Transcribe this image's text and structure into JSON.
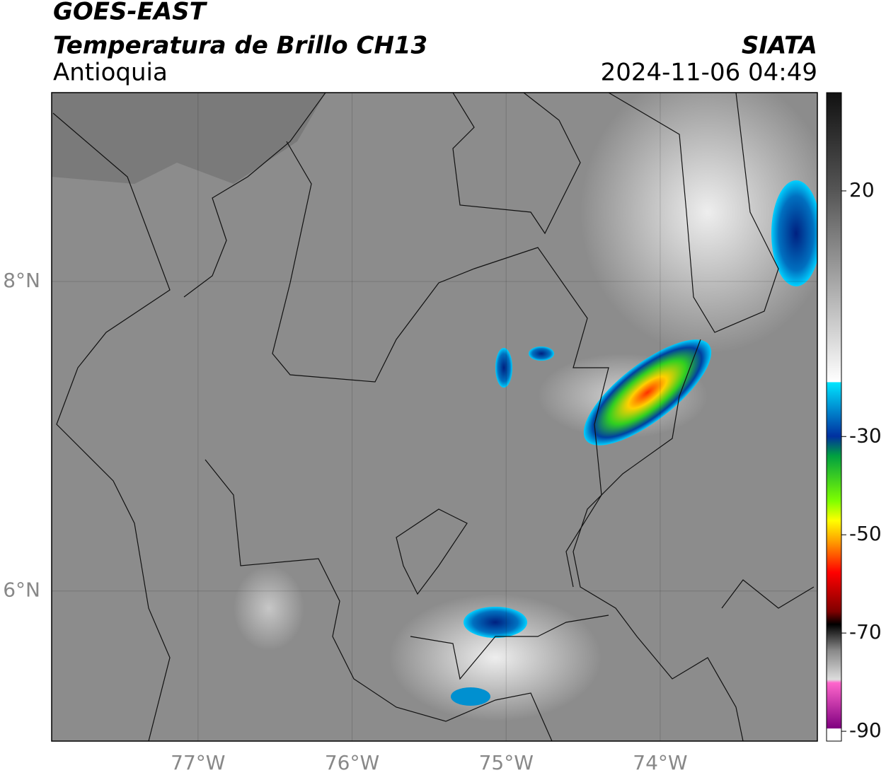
{
  "header": {
    "title": "GOES-EAST",
    "subtitle": "Temperatura de Brillo CH13",
    "region": "Antioquia",
    "source": "SIATA",
    "datetime": "2024-11-06 04:49"
  },
  "map": {
    "xlim": [
      -77.95,
      -72.98
    ],
    "ylim": [
      5.03,
      9.22
    ],
    "xticks": [
      {
        "value": -77,
        "label": "77°W"
      },
      {
        "value": -76,
        "label": "76°W"
      },
      {
        "value": -75,
        "label": "75°W"
      },
      {
        "value": -74,
        "label": "74°W"
      }
    ],
    "yticks": [
      {
        "value": 6,
        "label": "6°N"
      },
      {
        "value": 8,
        "label": "8°N"
      }
    ],
    "grid": true
  },
  "colorbar": {
    "lim": [
      -92,
      40
    ],
    "ticks": [
      -90,
      -70,
      -50,
      -30,
      20
    ]
  }
}
